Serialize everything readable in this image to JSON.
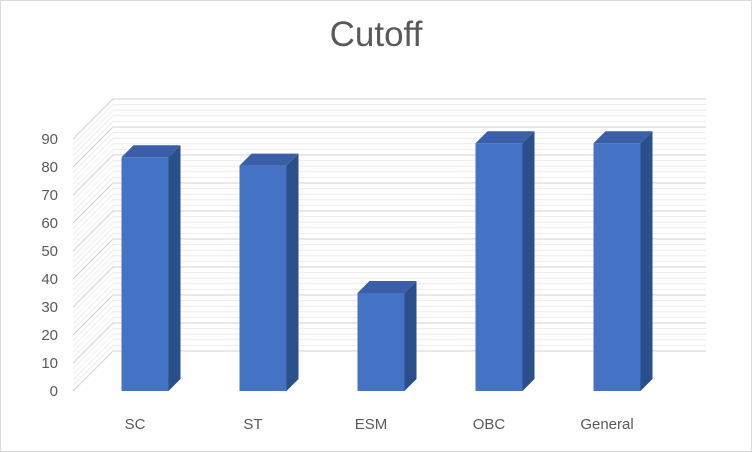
{
  "chart_data": {
    "type": "bar",
    "title": "Cutoff",
    "categories": [
      "SC",
      "ST",
      "ESM",
      "OBC",
      "General"
    ],
    "values": [
      83.5,
      80.5,
      35,
      88.5,
      88.5
    ],
    "ylim": [
      0,
      90
    ],
    "yticks": [
      "0",
      "10",
      "20",
      "30",
      "40",
      "50",
      "60",
      "70",
      "80",
      "90"
    ],
    "grid": true,
    "legend": "none",
    "style": "3d-column",
    "colors": {
      "bar_front": "#4472c4",
      "bar_side": "#2b4f8a",
      "bar_top": "#3a5fa8"
    }
  }
}
